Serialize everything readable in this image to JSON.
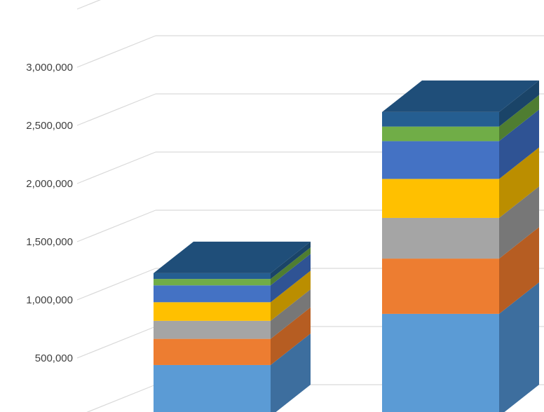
{
  "chart_data": {
    "type": "bar",
    "stacked": true,
    "three_d": true,
    "title": "",
    "xlabel": "",
    "ylabel": "",
    "ylim": [
      0,
      3300000
    ],
    "y_ticks": [
      500000,
      1000000,
      1500000,
      2000000,
      2500000,
      3000000
    ],
    "y_tick_labels": [
      "500,000",
      "1,000,000",
      "1,500,000",
      "2,000,000",
      "2,500,000",
      "3,000,000"
    ],
    "grid": true,
    "legend": "none",
    "categories": [
      "",
      ""
    ],
    "series": [
      {
        "color": "#5b9bd5",
        "side": "#3d6e9e",
        "values": [
          440000,
          880000
        ]
      },
      {
        "color": "#ed7d31",
        "side": "#b65d22",
        "values": [
          225000,
          475000
        ]
      },
      {
        "color": "#a5a5a5",
        "side": "#777777",
        "values": [
          155000,
          350000
        ]
      },
      {
        "color": "#ffc000",
        "side": "#bb8e00",
        "values": [
          160000,
          335000
        ]
      },
      {
        "color": "#4472c4",
        "side": "#2f5394",
        "values": [
          145000,
          325000
        ]
      },
      {
        "color": "#70ad47",
        "side": "#4f7d31",
        "values": [
          55000,
          125000
        ]
      },
      {
        "color": "#255e91",
        "side": "#1a4468",
        "values": [
          50000,
          125000
        ]
      }
    ],
    "top_color": "#1f4e79"
  }
}
